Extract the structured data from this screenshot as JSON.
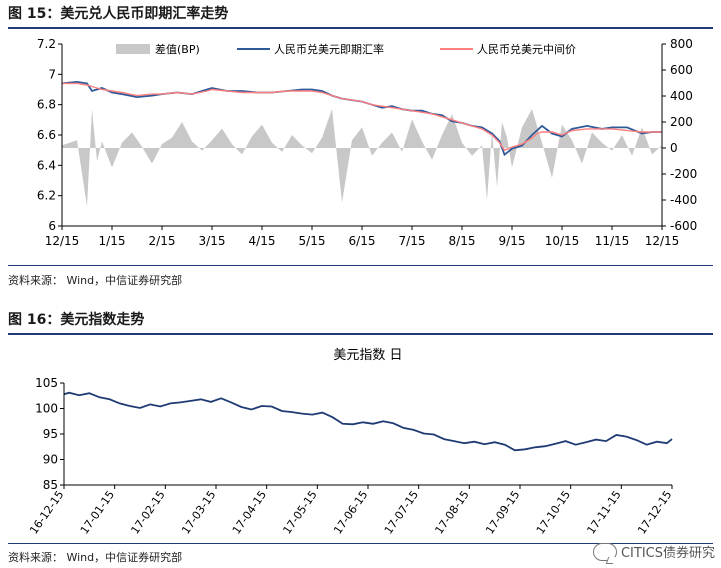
{
  "figures": [
    {
      "title": "图 15：美元兑人民币即期汇率走势",
      "source": "资料来源：   Wind，中信证券研究部"
    },
    {
      "title": "图 16：美元指数走势",
      "source": "资料来源：   Wind，中信证券研究部"
    }
  ],
  "watermark": {
    "text": "CITICS债券研究",
    "icon": "wechat-icon"
  },
  "colors": {
    "accent": "#1f3b73",
    "spot": "#2e5a9a",
    "mid": "#ff7f7f",
    "spread": "#c8c8c8",
    "dxy": "#1f3b73"
  },
  "chart_data": [
    {
      "type": "line",
      "title": "",
      "x_ticks": [
        "12/15",
        "1/15",
        "2/15",
        "3/15",
        "4/15",
        "5/15",
        "6/15",
        "7/15",
        "8/15",
        "9/15",
        "10/15",
        "11/15",
        "12/15"
      ],
      "ylim": [
        6,
        7.2
      ],
      "y_ticks": [
        "6",
        "6.2",
        "6.4",
        "6.6",
        "6.8",
        "7",
        "7.2"
      ],
      "y2lim": [
        -600,
        800
      ],
      "y2_ticks": [
        "-600",
        "-400",
        "-200",
        "0",
        "200",
        "400",
        "600",
        "800"
      ],
      "legend": "top",
      "grid": false,
      "series": [
        {
          "name": "差值(BP)",
          "kind": "area",
          "axis": "right",
          "x": [
            0,
            0.3,
            0.5,
            0.6,
            0.7,
            0.8,
            1.0,
            1.2,
            1.4,
            1.6,
            1.8,
            2.0,
            2.2,
            2.4,
            2.6,
            2.8,
            3.0,
            3.2,
            3.4,
            3.6,
            3.8,
            4.0,
            4.2,
            4.4,
            4.6,
            4.8,
            5.0,
            5.2,
            5.4,
            5.6,
            5.8,
            6.0,
            6.2,
            6.4,
            6.6,
            6.8,
            7.0,
            7.2,
            7.4,
            7.6,
            7.8,
            8.0,
            8.2,
            8.4,
            8.5,
            8.6,
            8.7,
            8.8,
            8.9,
            9.0,
            9.2,
            9.4,
            9.6,
            9.8,
            10.0,
            10.2,
            10.4,
            10.6,
            10.8,
            11.0,
            11.2,
            11.4,
            11.6,
            11.8,
            12.0
          ],
          "values": [
            20,
            60,
            -450,
            300,
            -100,
            50,
            -150,
            40,
            120,
            10,
            -120,
            30,
            80,
            200,
            50,
            -20,
            60,
            150,
            30,
            -50,
            90,
            180,
            40,
            -30,
            100,
            20,
            -40,
            80,
            300,
            -420,
            60,
            160,
            -60,
            40,
            120,
            -30,
            220,
            50,
            -90,
            100,
            260,
            40,
            -60,
            20,
            -400,
            120,
            -300,
            200,
            80,
            -150,
            160,
            300,
            40,
            -230,
            180,
            60,
            -120,
            120,
            40,
            -20,
            100,
            -60,
            160,
            -50,
            20
          ]
        },
        {
          "name": "人民币兑美元即期汇率",
          "kind": "line",
          "axis": "left",
          "x": [
            0,
            0.3,
            0.5,
            0.6,
            0.8,
            1.0,
            1.2,
            1.5,
            1.8,
            2.0,
            2.3,
            2.6,
            2.9,
            3.0,
            3.3,
            3.6,
            3.9,
            4.2,
            4.5,
            4.8,
            5.0,
            5.2,
            5.4,
            5.6,
            5.8,
            6.0,
            6.2,
            6.4,
            6.6,
            6.8,
            7.0,
            7.2,
            7.4,
            7.6,
            7.8,
            8.0,
            8.2,
            8.4,
            8.6,
            8.75,
            8.85,
            9.0,
            9.2,
            9.4,
            9.5,
            9.6,
            9.8,
            10.0,
            10.2,
            10.5,
            10.8,
            11.0,
            11.3,
            11.6,
            11.8,
            12.0
          ],
          "values": [
            6.94,
            6.95,
            6.94,
            6.89,
            6.91,
            6.88,
            6.87,
            6.85,
            6.86,
            6.87,
            6.88,
            6.87,
            6.9,
            6.91,
            6.89,
            6.89,
            6.88,
            6.88,
            6.89,
            6.9,
            6.9,
            6.89,
            6.86,
            6.84,
            6.83,
            6.82,
            6.8,
            6.78,
            6.79,
            6.77,
            6.76,
            6.76,
            6.74,
            6.73,
            6.69,
            6.68,
            6.66,
            6.65,
            6.61,
            6.56,
            6.47,
            6.51,
            6.53,
            6.6,
            6.63,
            6.66,
            6.61,
            6.59,
            6.64,
            6.66,
            6.64,
            6.65,
            6.65,
            6.61,
            6.62,
            6.62
          ]
        },
        {
          "name": "人民币兑美元中间价",
          "kind": "line",
          "axis": "left",
          "x": [
            0,
            0.3,
            0.5,
            0.6,
            0.8,
            1.0,
            1.2,
            1.5,
            1.8,
            2.0,
            2.3,
            2.6,
            2.9,
            3.0,
            3.3,
            3.6,
            3.9,
            4.2,
            4.5,
            4.8,
            5.0,
            5.2,
            5.4,
            5.6,
            5.8,
            6.0,
            6.2,
            6.4,
            6.6,
            6.8,
            7.0,
            7.2,
            7.4,
            7.6,
            7.8,
            8.0,
            8.2,
            8.4,
            8.6,
            8.75,
            8.85,
            9.0,
            9.2,
            9.4,
            9.5,
            9.6,
            9.8,
            10.0,
            10.2,
            10.5,
            10.8,
            11.0,
            11.3,
            11.6,
            11.8,
            12.0
          ],
          "values": [
            6.94,
            6.94,
            6.93,
            6.92,
            6.9,
            6.89,
            6.88,
            6.86,
            6.87,
            6.87,
            6.88,
            6.87,
            6.89,
            6.9,
            6.89,
            6.88,
            6.88,
            6.88,
            6.89,
            6.89,
            6.89,
            6.88,
            6.86,
            6.84,
            6.83,
            6.82,
            6.8,
            6.79,
            6.78,
            6.77,
            6.76,
            6.75,
            6.74,
            6.72,
            6.7,
            6.68,
            6.66,
            6.64,
            6.6,
            6.55,
            6.5,
            6.52,
            6.54,
            6.58,
            6.61,
            6.62,
            6.62,
            6.6,
            6.63,
            6.64,
            6.64,
            6.64,
            6.63,
            6.62,
            6.62,
            6.62
          ]
        }
      ]
    },
    {
      "type": "line",
      "title": "美元指数 日",
      "x_ticks": [
        "16-12-15",
        "17-01-15",
        "17-02-15",
        "17-03-15",
        "17-04-15",
        "17-05-15",
        "17-06-15",
        "17-07-15",
        "17-08-15",
        "17-09-15",
        "17-10-15",
        "17-11-15",
        "17-12-15"
      ],
      "ylim": [
        85,
        105
      ],
      "y_ticks": [
        "85",
        "90",
        "95",
        "100",
        "105"
      ],
      "legend": "none",
      "grid": false,
      "series": [
        {
          "name": "",
          "kind": "line",
          "x": [
            0,
            0.1,
            0.3,
            0.5,
            0.7,
            0.9,
            1.1,
            1.3,
            1.5,
            1.7,
            1.9,
            2.1,
            2.3,
            2.5,
            2.7,
            2.9,
            3.1,
            3.3,
            3.5,
            3.7,
            3.9,
            4.1,
            4.3,
            4.5,
            4.7,
            4.9,
            5.1,
            5.3,
            5.5,
            5.7,
            5.9,
            6.1,
            6.3,
            6.5,
            6.7,
            6.9,
            7.1,
            7.3,
            7.5,
            7.7,
            7.9,
            8.1,
            8.3,
            8.5,
            8.7,
            8.9,
            9.1,
            9.3,
            9.5,
            9.7,
            9.9,
            10.1,
            10.3,
            10.5,
            10.7,
            10.9,
            11.1,
            11.3,
            11.5,
            11.7,
            11.9,
            12.0
          ],
          "values": [
            102.8,
            103.1,
            102.6,
            103.0,
            102.2,
            101.8,
            101.0,
            100.5,
            100.1,
            100.8,
            100.4,
            101.0,
            101.2,
            101.5,
            101.8,
            101.3,
            102.0,
            101.2,
            100.3,
            99.8,
            100.5,
            100.4,
            99.5,
            99.3,
            99.0,
            98.8,
            99.2,
            98.3,
            97.0,
            96.9,
            97.3,
            97.0,
            97.5,
            97.1,
            96.2,
            95.8,
            95.1,
            94.9,
            94.0,
            93.6,
            93.2,
            93.5,
            93.0,
            93.4,
            92.9,
            91.8,
            92.0,
            92.4,
            92.6,
            93.1,
            93.6,
            92.9,
            93.4,
            93.9,
            93.6,
            94.8,
            94.5,
            93.8,
            92.9,
            93.5,
            93.2,
            94.0
          ]
        }
      ]
    }
  ]
}
